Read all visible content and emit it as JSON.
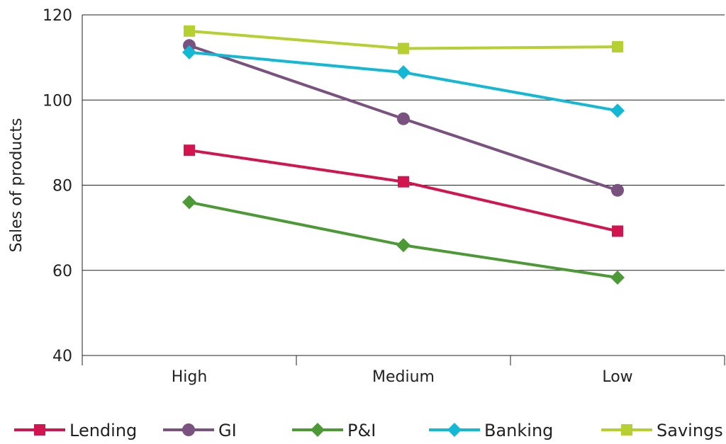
{
  "chart_data": {
    "type": "line",
    "title": "",
    "xlabel": "",
    "ylabel": "Sales of products",
    "categories": [
      "High",
      "Medium",
      "Low"
    ],
    "ylim": [
      40,
      120
    ],
    "yticks": [
      40,
      60,
      80,
      100,
      120
    ],
    "grid": true,
    "legend_position": "bottom",
    "series": [
      {
        "name": "Lending",
        "values": [
          88.2,
          80.8,
          69.2
        ],
        "color": "#d3154f",
        "marker": "square"
      },
      {
        "name": "GI",
        "values": [
          112.8,
          95.6,
          78.8
        ],
        "color": "#7a527f",
        "marker": "circle"
      },
      {
        "name": "P&I",
        "values": [
          76.0,
          65.9,
          58.3
        ],
        "color": "#4c9a35",
        "marker": "diamond"
      },
      {
        "name": "Banking",
        "values": [
          111.2,
          106.5,
          97.5
        ],
        "color": "#13b8d4",
        "marker": "diamond"
      },
      {
        "name": "Savings",
        "values": [
          116.2,
          112.1,
          112.5
        ],
        "color": "#b6cf31",
        "marker": "square"
      }
    ]
  }
}
